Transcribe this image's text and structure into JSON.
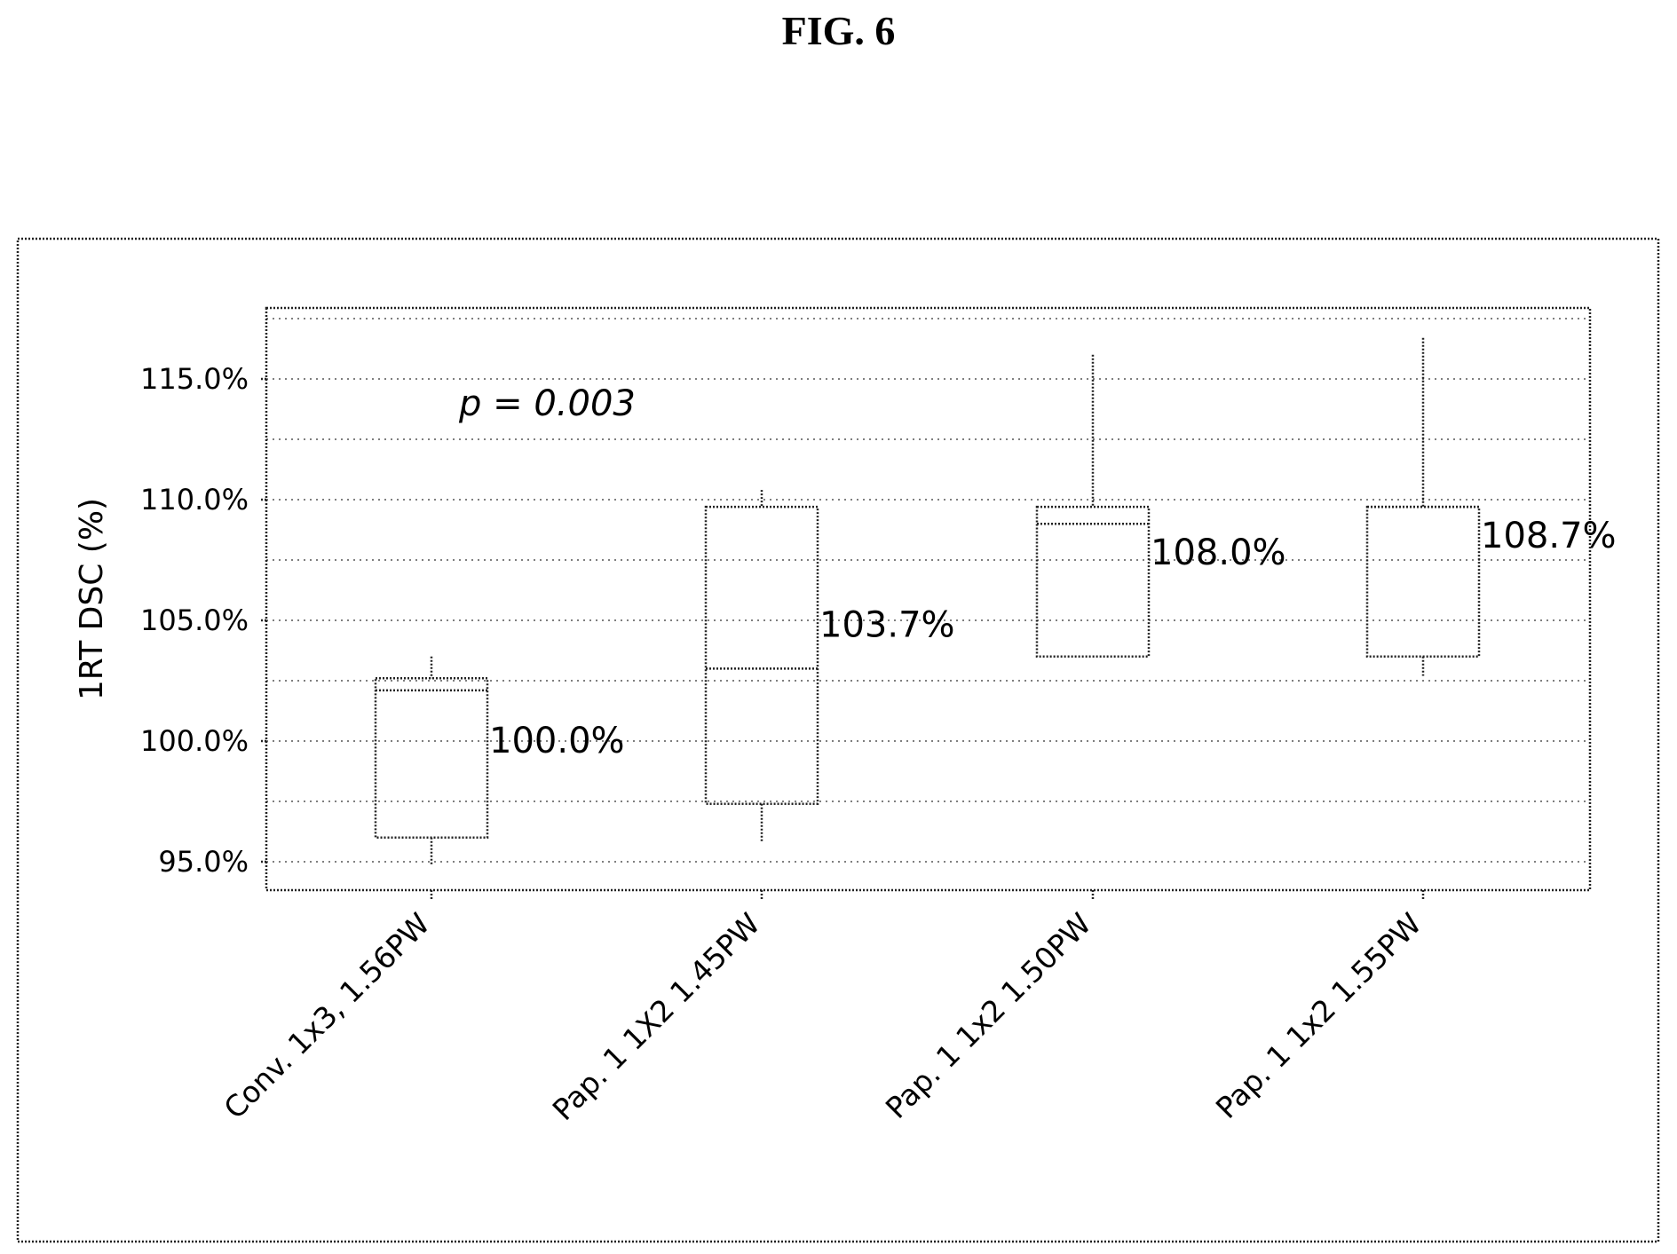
{
  "figure_title": "FIG. 6",
  "chart_data": {
    "type": "box",
    "ylabel": "1RT DSC (%)",
    "ylim": [
      94.0,
      118.0
    ],
    "yticks": [
      95.0,
      100.0,
      105.0,
      110.0,
      115.0
    ],
    "ytick_labels": [
      "95.0%",
      "100.0%",
      "105.0%",
      "110.0%",
      "115.0%"
    ],
    "grid": true,
    "annotation": "p = 0.003",
    "categories": [
      "Conv. 1x3, 1.56PW",
      "Pap. 1 1X2 1.45PW",
      "Pap. 1 1x2 1.50PW",
      "Pap. 1 1x2 1.55PW"
    ],
    "boxes": [
      {
        "whisker_low": 94.9,
        "q1": 96.0,
        "median": 102.1,
        "q3": 102.6,
        "whisker_high": 103.5,
        "label": "100.0%"
      },
      {
        "whisker_low": 95.8,
        "q1": 97.4,
        "median": 103.0,
        "q3": 109.7,
        "whisker_high": 110.4,
        "label": "103.7%"
      },
      {
        "whisker_low": 103.5,
        "q1": 103.5,
        "median": 109.0,
        "q3": 109.7,
        "whisker_high": 116.0,
        "label": "108.0%"
      },
      {
        "whisker_low": 102.7,
        "q1": 103.5,
        "median": 109.7,
        "q3": 109.7,
        "whisker_high": 116.7,
        "label": "108.7%"
      }
    ]
  }
}
